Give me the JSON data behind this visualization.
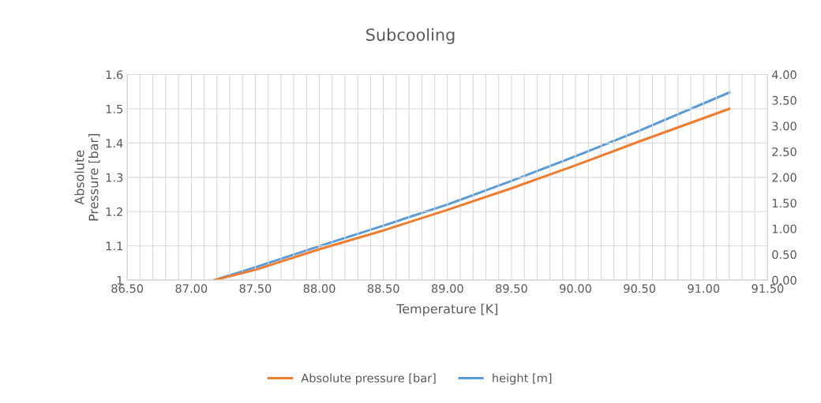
{
  "chart_data": {
    "type": "line",
    "title": "Subcooling",
    "xlabel": "Temperature [K]",
    "ylabel": "Absolute\nPressure [bar]",
    "xlim": [
      86.5,
      91.5
    ],
    "xticks": [
      {
        "value": 86.5,
        "label": "86.50"
      },
      {
        "value": 86.6,
        "label": null
      },
      {
        "value": 86.7,
        "label": null
      },
      {
        "value": 86.8,
        "label": null
      },
      {
        "value": 86.9,
        "label": null
      },
      {
        "value": 87.0,
        "label": "87.00"
      },
      {
        "value": 87.1,
        "label": null
      },
      {
        "value": 87.2,
        "label": null
      },
      {
        "value": 87.3,
        "label": null
      },
      {
        "value": 87.4,
        "label": null
      },
      {
        "value": 87.5,
        "label": "87.50"
      },
      {
        "value": 87.6,
        "label": null
      },
      {
        "value": 87.7,
        "label": null
      },
      {
        "value": 87.8,
        "label": null
      },
      {
        "value": 87.9,
        "label": null
      },
      {
        "value": 88.0,
        "label": "88.00"
      },
      {
        "value": 88.1,
        "label": null
      },
      {
        "value": 88.2,
        "label": null
      },
      {
        "value": 88.3,
        "label": null
      },
      {
        "value": 88.4,
        "label": null
      },
      {
        "value": 88.5,
        "label": "88.50"
      },
      {
        "value": 88.6,
        "label": null
      },
      {
        "value": 88.7,
        "label": null
      },
      {
        "value": 88.8,
        "label": null
      },
      {
        "value": 88.9,
        "label": null
      },
      {
        "value": 89.0,
        "label": "89.00"
      },
      {
        "value": 89.1,
        "label": null
      },
      {
        "value": 89.2,
        "label": null
      },
      {
        "value": 89.3,
        "label": null
      },
      {
        "value": 89.4,
        "label": null
      },
      {
        "value": 89.5,
        "label": "89.50"
      },
      {
        "value": 89.6,
        "label": null
      },
      {
        "value": 89.7,
        "label": null
      },
      {
        "value": 89.8,
        "label": null
      },
      {
        "value": 89.9,
        "label": null
      },
      {
        "value": 90.0,
        "label": "90.00"
      },
      {
        "value": 90.1,
        "label": null
      },
      {
        "value": 90.2,
        "label": null
      },
      {
        "value": 90.3,
        "label": null
      },
      {
        "value": 90.4,
        "label": null
      },
      {
        "value": 90.5,
        "label": "90.50"
      },
      {
        "value": 90.6,
        "label": null
      },
      {
        "value": 90.7,
        "label": null
      },
      {
        "value": 90.8,
        "label": null
      },
      {
        "value": 90.9,
        "label": null
      },
      {
        "value": 91.0,
        "label": "91.00"
      },
      {
        "value": 91.1,
        "label": null
      },
      {
        "value": 91.2,
        "label": null
      },
      {
        "value": 91.3,
        "label": null
      },
      {
        "value": 91.4,
        "label": null
      },
      {
        "value": 91.5,
        "label": "91.50"
      }
    ],
    "ylim": [
      1,
      1.6
    ],
    "yticks": [
      1,
      1.1,
      1.2,
      1.3,
      1.4,
      1.5,
      1.6
    ],
    "y2lim": [
      0,
      4
    ],
    "y2ticks": [
      {
        "value": 0,
        "label": "0.00"
      },
      {
        "value": 0.5,
        "label": "0.50"
      },
      {
        "value": 1,
        "label": "1.00"
      },
      {
        "value": 1.5,
        "label": "1.50"
      },
      {
        "value": 2,
        "label": "2.00"
      },
      {
        "value": 2.5,
        "label": "2.50"
      },
      {
        "value": 3,
        "label": "3.00"
      },
      {
        "value": 3.5,
        "label": "3.50"
      },
      {
        "value": 4,
        "label": "4.00"
      }
    ],
    "grid": true,
    "legend": "bottom",
    "marker": "none",
    "line_style": "solid",
    "series": [
      {
        "name": "Absolute pressure [bar]",
        "color": "#ed7d31",
        "x": [
          87.18,
          87.5,
          88.0,
          88.5,
          89.0,
          89.5,
          90.0,
          90.5,
          91.2
        ],
        "values": [
          1.0,
          1.03,
          1.09,
          1.145,
          1.205,
          1.268,
          1.335,
          1.405,
          1.5
        ]
      },
      {
        "name": "height [m]",
        "color": "#5b9bd5",
        "axis": "y2",
        "x": [
          87.18,
          87.5,
          88.0,
          88.5,
          89.0,
          89.5,
          90.0,
          90.5,
          91.2
        ],
        "values": [
          0.0,
          0.25,
          0.66,
          1.06,
          1.47,
          1.93,
          2.41,
          2.91,
          3.65
        ]
      }
    ]
  }
}
